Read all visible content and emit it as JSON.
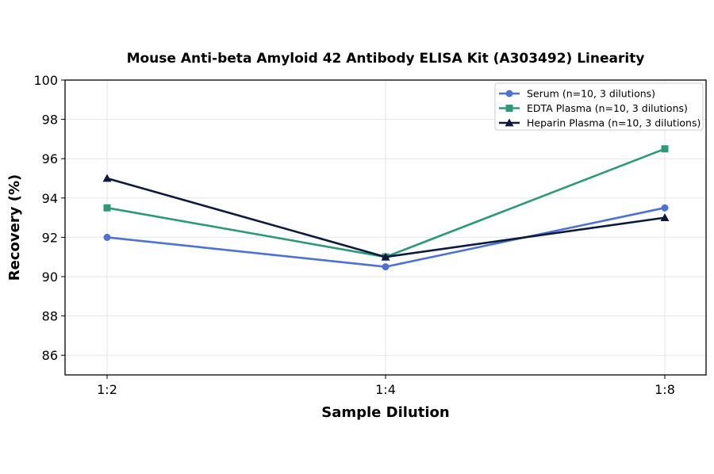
{
  "chart_data": {
    "type": "line",
    "title": "Mouse Anti-beta Amyloid 42 Antibody ELISA Kit (A303492) Linearity",
    "xlabel": "Sample Dilution",
    "ylabel": "Recovery (%)",
    "categories": [
      "1:2",
      "1:4",
      "1:8"
    ],
    "ylim": [
      85,
      100
    ],
    "yticks": [
      86,
      88,
      90,
      92,
      94,
      96,
      98,
      100
    ],
    "grid": true,
    "legend_position": "top-right",
    "series": [
      {
        "name": "Serum (n=10, 3 dilutions)",
        "values": [
          92.0,
          90.5,
          93.5
        ],
        "color": "#4e72d4",
        "marker": "circle"
      },
      {
        "name": "EDTA Plasma (n=10, 3 dilutions)",
        "values": [
          93.5,
          91.0,
          96.5
        ],
        "color": "#2a9a78",
        "marker": "square"
      },
      {
        "name": "Heparin Plasma (n=10, 3 dilutions)",
        "values": [
          95.0,
          91.0,
          93.0
        ],
        "color": "#0d1a3e",
        "marker": "triangle"
      }
    ]
  }
}
